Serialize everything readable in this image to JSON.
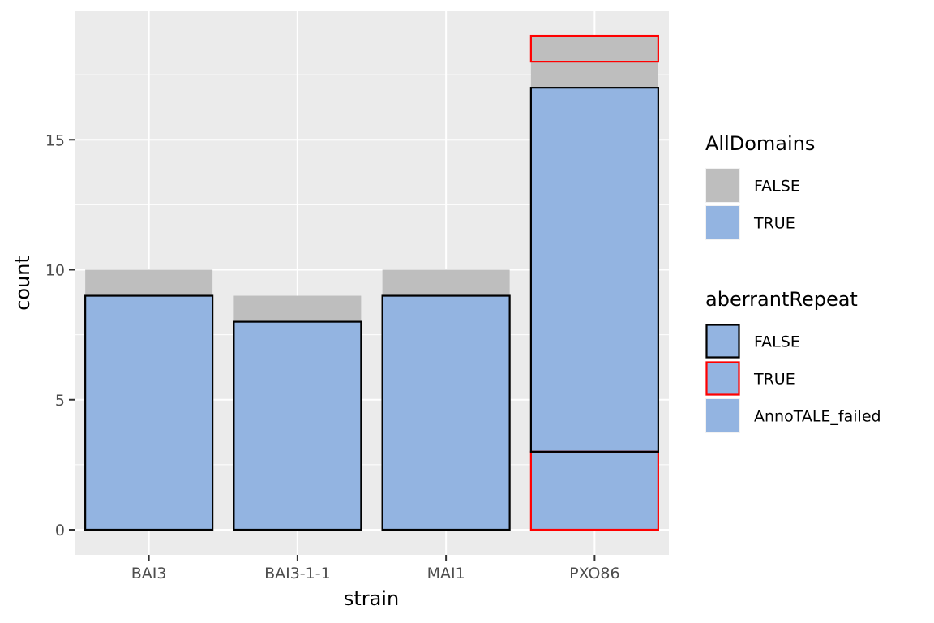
{
  "chart_data": {
    "type": "bar",
    "xlabel": "strain",
    "ylabel": "count",
    "categories": [
      "BAI3",
      "BAI3-1-1",
      "MAI1",
      "PXO86"
    ],
    "ylim": [
      0,
      19.5
    ],
    "yticks": [
      0,
      5,
      10,
      15
    ],
    "grid": true,
    "stacked": true,
    "fill_series": [
      {
        "name": "TRUE",
        "color": "#93b4e1",
        "values": [
          9,
          8,
          9,
          17
        ]
      },
      {
        "name": "FALSE",
        "color": "#bebebe",
        "values": [
          1,
          1,
          1,
          2
        ]
      }
    ],
    "outline_segments": [
      {
        "category": "BAI3",
        "aberrantRepeat": "FALSE",
        "from": 0,
        "to": 9
      },
      {
        "category": "BAI3-1-1",
        "aberrantRepeat": "FALSE",
        "from": 0,
        "to": 8
      },
      {
        "category": "MAI1",
        "aberrantRepeat": "FALSE",
        "from": 0,
        "to": 9
      },
      {
        "category": "PXO86",
        "aberrantRepeat": "TRUE",
        "from": 0,
        "to": 3
      },
      {
        "category": "PXO86",
        "aberrantRepeat": "FALSE",
        "from": 3,
        "to": 17
      },
      {
        "category": "PXO86",
        "aberrantRepeat": "TRUE",
        "from": 18,
        "to": 19
      }
    ],
    "legends": [
      {
        "title": "AllDomains",
        "items": [
          {
            "label": "FALSE",
            "fill": "#bebebe",
            "stroke": "none"
          },
          {
            "label": "TRUE",
            "fill": "#93b4e1",
            "stroke": "none"
          }
        ]
      },
      {
        "title": "aberrantRepeat",
        "items": [
          {
            "label": "FALSE",
            "fill": "#93b4e1",
            "stroke": "#000000"
          },
          {
            "label": "TRUE",
            "fill": "#93b4e1",
            "stroke": "#ff0000"
          },
          {
            "label": "AnnoTALE_failed",
            "fill": "#93b4e1",
            "stroke": "none"
          }
        ]
      }
    ],
    "legend_position": "right",
    "outline_colors": {
      "FALSE": "#000000",
      "TRUE": "#ff0000"
    },
    "panel_background": "#ebebeb",
    "grid_color": "#ffffff"
  }
}
